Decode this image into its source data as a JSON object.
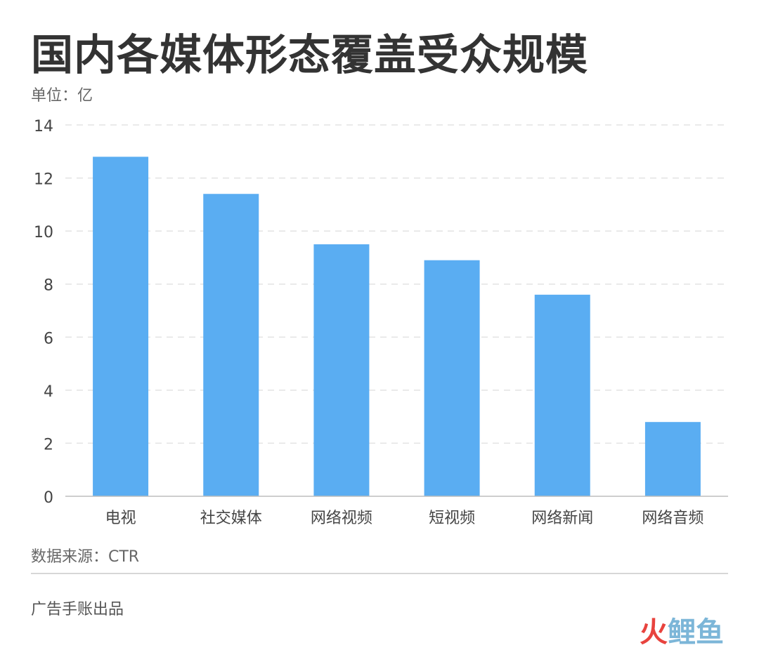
{
  "header": {
    "title": "国内各媒体形态覆盖受众规模",
    "unit": "单位：亿"
  },
  "footer": {
    "source": "数据来源：CTR",
    "producer": "广告手账出品",
    "watermark_part1": "火",
    "watermark_part2": "鲤鱼"
  },
  "colors": {
    "bar": "#5AADF2",
    "grid": "#e3e3e3",
    "axis": "#bdbdbd",
    "tick_text": "#444444"
  },
  "chart_data": {
    "type": "bar",
    "categories": [
      "电视",
      "社交媒体",
      "网络视频",
      "短视频",
      "网络新闻",
      "网络音频"
    ],
    "values": [
      12.8,
      11.4,
      9.5,
      8.9,
      7.6,
      2.8
    ],
    "ylim": [
      0,
      14
    ],
    "yticks": [
      0,
      2,
      4,
      6,
      8,
      10,
      12,
      14
    ],
    "grid": true,
    "grid_style": "dashed",
    "legend": "none"
  }
}
